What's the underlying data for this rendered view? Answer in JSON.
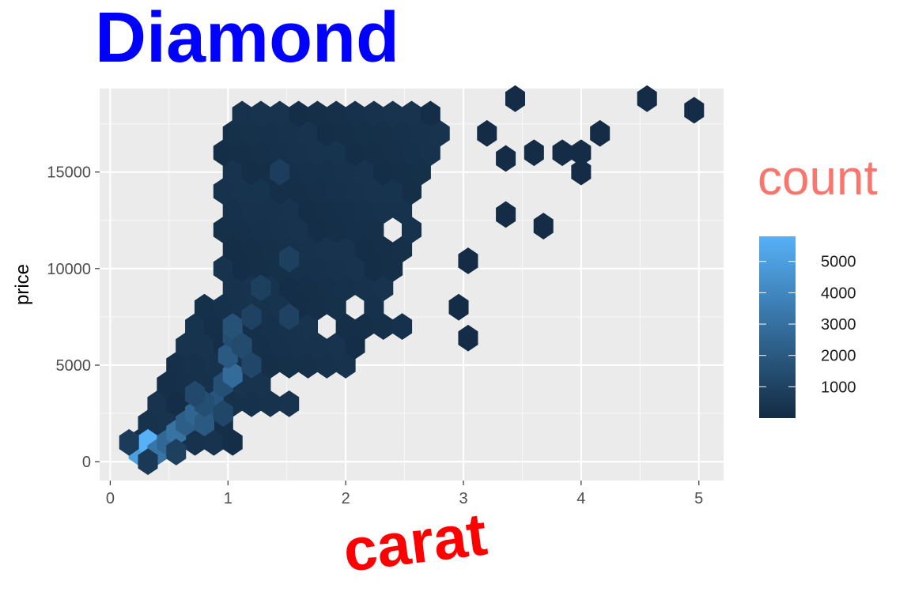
{
  "chart_data": {
    "type": "hexbin",
    "title": "Diamond",
    "xlabel": "carat",
    "ylabel": "price",
    "xlim": [
      -0.09,
      5.21
    ],
    "ylim": [
      -976,
      19324
    ],
    "x_ticks": [
      0,
      1,
      2,
      3,
      4,
      5
    ],
    "y_ticks": [
      0,
      5000,
      10000,
      15000
    ],
    "x_tick_labels": [
      "0",
      "1",
      "2",
      "3",
      "4",
      "5"
    ],
    "y_tick_labels": [
      "0",
      "5000",
      "10000",
      "15000"
    ],
    "grid": true,
    "legend": {
      "title": "count",
      "placement": "right",
      "breaks": [
        1000,
        2000,
        3000,
        4000,
        5000
      ],
      "labels": [
        "1000",
        "2000",
        "3000",
        "4000",
        "5000"
      ],
      "range": [
        1,
        5800
      ],
      "low_color": "#132B43",
      "high_color": "#56B1F7"
    },
    "colors": {
      "title": "#0000ff",
      "xlabel": "#ff0000",
      "legend_title": "#f8766d",
      "panel": "#ebebeb"
    },
    "bins_note_units": "x = carat, y = price, count = diamonds in bin",
    "bins": [
      {
        "x": 0.24,
        "y": 500,
        "count": 5000
      },
      {
        "x": 0.32,
        "y": 1000,
        "count": 5800
      },
      {
        "x": 0.4,
        "y": 500,
        "count": 3200
      },
      {
        "x": 0.48,
        "y": 1000,
        "count": 2600
      },
      {
        "x": 0.56,
        "y": 1500,
        "count": 3100
      },
      {
        "x": 0.32,
        "y": 0,
        "count": 600
      },
      {
        "x": 0.56,
        "y": 500,
        "count": 900
      },
      {
        "x": 0.16,
        "y": 1000,
        "count": 700
      },
      {
        "x": 0.64,
        "y": 2000,
        "count": 2200
      },
      {
        "x": 0.72,
        "y": 2500,
        "count": 2500
      },
      {
        "x": 0.8,
        "y": 2000,
        "count": 2000
      },
      {
        "x": 0.88,
        "y": 3000,
        "count": 1800
      },
      {
        "x": 0.96,
        "y": 4000,
        "count": 1600
      },
      {
        "x": 1.04,
        "y": 4500,
        "count": 2800
      },
      {
        "x": 1.0,
        "y": 5500,
        "count": 2000
      },
      {
        "x": 1.04,
        "y": 6500,
        "count": 1500
      },
      {
        "x": 1.04,
        "y": 7000,
        "count": 1700
      },
      {
        "x": 1.12,
        "y": 6000,
        "count": 1400
      },
      {
        "x": 0.8,
        "y": 3000,
        "count": 1500
      },
      {
        "x": 0.72,
        "y": 3500,
        "count": 1300
      },
      {
        "x": 0.96,
        "y": 2500,
        "count": 1200
      },
      {
        "x": 1.2,
        "y": 5000,
        "count": 1200
      },
      {
        "x": 1.2,
        "y": 7500,
        "count": 1000
      },
      {
        "x": 1.28,
        "y": 9000,
        "count": 900
      },
      {
        "x": 1.52,
        "y": 10500,
        "count": 900
      },
      {
        "x": 1.52,
        "y": 7500,
        "count": 1000
      },
      {
        "x": 1.44,
        "y": 15000,
        "count": 800
      }
    ]
  }
}
